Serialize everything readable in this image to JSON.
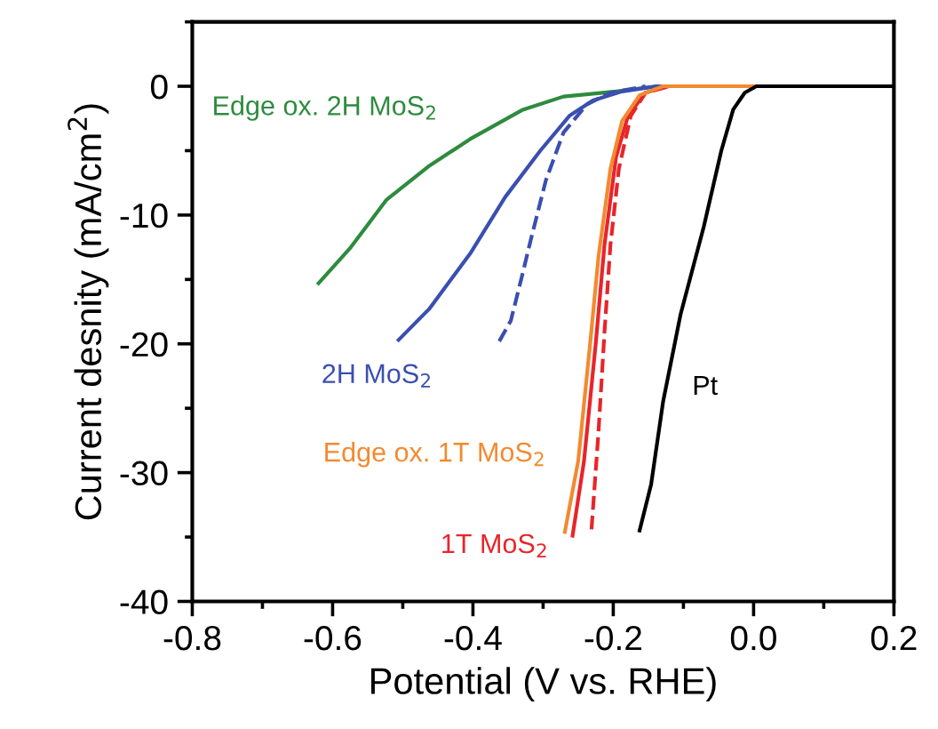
{
  "chart_data": {
    "type": "line",
    "xlabel": "Potential (V vs. RHE)",
    "ylabel": "Current desnity (mA/cm$^{2}$)",
    "xlim": [
      -0.8,
      0.2
    ],
    "xticks": [
      {
        "value": -0.8,
        "label": "-0.8"
      },
      {
        "value": -0.6,
        "label": "-0.6"
      },
      {
        "value": -0.4,
        "label": "-0.4"
      },
      {
        "value": -0.2,
        "label": "-0.2"
      },
      {
        "value": 0.0,
        "label": "0.0"
      },
      {
        "value": 0.2,
        "label": "0.2"
      }
    ],
    "ylim": [
      -40,
      5
    ],
    "yticks": [
      {
        "value": -40,
        "label": "-40"
      },
      {
        "value": -30,
        "label": "-30"
      },
      {
        "value": -20,
        "label": "-20"
      },
      {
        "value": -10,
        "label": "-10"
      },
      0
    ],
    "grid": false,
    "legend": false,
    "marker": "none",
    "series": [
      {
        "name": "Edge ox. 2H MoS$_{2}$",
        "color": "#2e8b3e",
        "line_style": "solid",
        "x": [
          -0.62,
          -0.574,
          -0.523,
          -0.464,
          -0.404,
          -0.33,
          -0.271,
          -0.196,
          -0.1375,
          0.2
        ],
        "values": [
          -15.3,
          -12.5,
          -8.8,
          -6.25,
          -4.1,
          -1.85,
          -0.8,
          -0.4,
          0,
          0
        ]
      },
      {
        "name": "2H MoS$_{2}$",
        "color": "#3a4fb0",
        "line_style": "solid",
        "x": [
          -0.506,
          -0.4625,
          -0.404,
          -0.354,
          -0.304,
          -0.2625,
          -0.229,
          -0.1875,
          -0.1375,
          0.2
        ],
        "values": [
          -19.7,
          -17.3,
          -13,
          -8.6,
          -5,
          -2.3,
          -1.1,
          -0.4,
          0,
          0
        ]
      },
      {
        "color": "#3a4fb0",
        "line_style": "dashed",
        "x": [
          -0.3625,
          -0.346,
          -0.329,
          -0.317,
          -0.296,
          -0.271,
          -0.2375,
          -0.204,
          -0.154
        ],
        "values": [
          -19.8,
          -18.2,
          -14.5,
          -11.8,
          -7.3,
          -3.6,
          -1.4,
          -0.5,
          0
        ]
      },
      {
        "name": "1T MoS$_{2}$",
        "color": "#e8252a",
        "line_style": "solid",
        "x": [
          -0.258,
          -0.2417,
          -0.225,
          -0.2125,
          -0.196,
          -0.179,
          -0.154,
          -0.121,
          0.2
        ],
        "values": [
          -34.9,
          -29.1,
          -20,
          -12.3,
          -5.5,
          -2.3,
          -0.5,
          0,
          0
        ]
      },
      {
        "color": "#e8252a",
        "line_style": "dashed",
        "x": [
          -0.231,
          -0.221,
          -0.2125,
          -0.204,
          -0.192,
          -0.175,
          -0.154,
          -0.121
        ],
        "values": [
          -34.4,
          -26.8,
          -19.1,
          -12.3,
          -6.4,
          -2.3,
          -0.5,
          0
        ]
      },
      {
        "name": "Edge ox. 1T MoS$_{2}$",
        "color": "#f28a30",
        "line_style": "solid",
        "x": [
          -0.269,
          -0.25,
          -0.233,
          -0.221,
          -0.204,
          -0.1875,
          -0.1625,
          -0.129,
          0.2
        ],
        "values": [
          -34.6,
          -29.1,
          -20,
          -13.2,
          -6.4,
          -2.7,
          -0.7,
          0,
          0
        ]
      },
      {
        "name": "Pt",
        "color": "#000000",
        "line_style": "solid",
        "x": [
          -0.1625,
          -0.146,
          -0.129,
          -0.104,
          -0.071,
          -0.046,
          -0.029,
          -0.0125,
          0.004,
          0.2
        ],
        "values": [
          -34.5,
          -30.9,
          -24.5,
          -17.7,
          -10.9,
          -5,
          -1.8,
          -0.5,
          0,
          0
        ]
      }
    ]
  }
}
